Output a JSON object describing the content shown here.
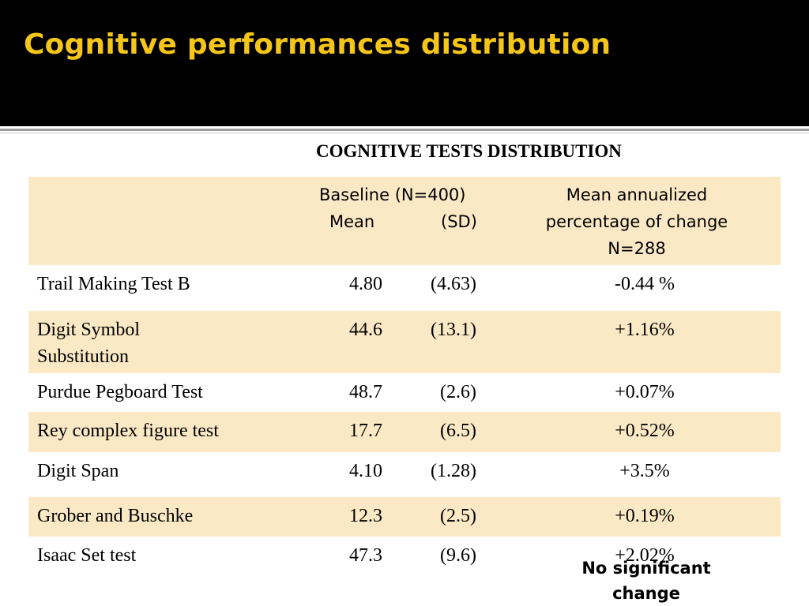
{
  "slide": {
    "title": "Cognitive performances distribution",
    "subtitle": "COGNITIVE  TESTS DISTRIBUTION",
    "note_line1": "No significant",
    "note_line2": "change"
  },
  "table": {
    "header": {
      "baseline_line1": "Baseline (N=400)",
      "mean_label": "Mean",
      "sd_label": "(SD)",
      "change_line1": "Mean annualized",
      "change_line2": "percentage of change",
      "change_line3": "N=288"
    },
    "rows": [
      {
        "name": "Trail Making Test B",
        "mean": "4.80",
        "sd": "(4.63)",
        "change": "-0.44 %"
      },
      {
        "name": "Digit Symbol",
        "name2": "Substitution",
        "mean": "44.6",
        "sd": "(13.1)",
        "change": "+1.16%"
      },
      {
        "name": "Purdue Pegboard Test",
        "mean": "48.7",
        "sd": "(2.6)",
        "change": "+0.07%"
      },
      {
        "name": "Rey complex figure test",
        "mean": "17.7",
        "sd": "(6.5)",
        "change": "+0.52%"
      },
      {
        "name": "Digit Span",
        "mean": "4.10",
        "sd": "(1.28)",
        "change": "+3.5%"
      },
      {
        "name": "Grober and Buschke",
        "mean": "12.3",
        "sd": "(2.5)",
        "change": "+0.19%"
      },
      {
        "name": "Isaac Set test",
        "mean": "47.3",
        "sd": "(9.6)",
        "change": "+2.02%"
      }
    ]
  },
  "colors": {
    "title": "#f5c518",
    "header_band": "#000000",
    "row_shade": "#fbe9c6"
  }
}
